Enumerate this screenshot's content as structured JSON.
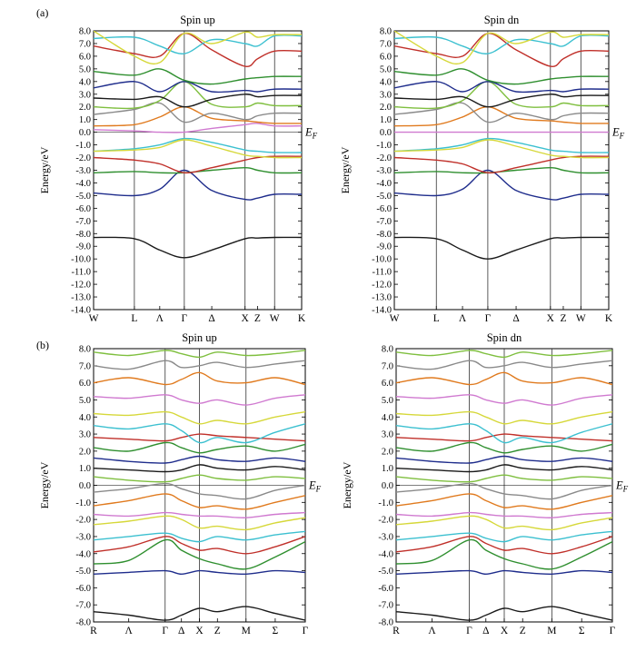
{
  "figure": {
    "part_labels": [
      "(a)",
      "(b)"
    ],
    "fermi_label": "E",
    "fermi_subscript": "F"
  },
  "band_colors": [
    "#1a1a1a",
    "#1f2d8c",
    "#2f8f2f",
    "#c0302a",
    "#3cc0d0",
    "#d6d83a",
    "#d07ad0",
    "#e07a1e",
    "#8a8a8a",
    "#7fbf3f"
  ],
  "chart_data": [
    {
      "type": "line",
      "panel": "a",
      "title": "Spin up",
      "ylabel": "Energy/eV",
      "ylim": [
        -14,
        8
      ],
      "yticks": [
        "8.0",
        "7.0",
        "6.0",
        "5.0",
        "4.0",
        "3.0",
        "2.0",
        "1.0",
        "0.0",
        "-1.0",
        "-2.0",
        "-3.0",
        "-4.0",
        "-5.0",
        "-6.0",
        "-7.0",
        "-8.0",
        "-9.0",
        "-10.0",
        "-11.0",
        "-12.0",
        "-13.0",
        "-14.0"
      ],
      "kpoints": [
        "W",
        "L",
        "Λ",
        "Γ",
        "Δ",
        "X",
        "Z",
        "W",
        "K"
      ],
      "kpos": [
        0,
        0.196,
        0.318,
        0.436,
        0.568,
        0.728,
        0.788,
        0.87,
        1
      ],
      "verticals": [
        1,
        3,
        5,
        7
      ],
      "series": [
        {
          "values": [
            -8.3,
            -8.4,
            -9.3,
            -9.9,
            -9.3,
            -8.4,
            -8.35,
            -8.3,
            -8.3
          ]
        },
        {
          "values": [
            -4.8,
            -5.0,
            -4.5,
            -3.0,
            -4.6,
            -5.3,
            -5.2,
            -4.9,
            -4.9
          ]
        },
        {
          "values": [
            -3.2,
            -3.1,
            -3.2,
            -3.2,
            -3.0,
            -2.8,
            -3.0,
            -3.2,
            -3.2
          ]
        },
        {
          "values": [
            -2.0,
            -2.2,
            -2.5,
            -3.2,
            -2.8,
            -2.2,
            -2.0,
            -1.9,
            -1.9
          ]
        },
        {
          "values": [
            -1.5,
            -1.3,
            -1.0,
            -0.5,
            -0.8,
            -1.4,
            -1.5,
            -1.6,
            -1.6
          ]
        },
        {
          "values": [
            -1.5,
            -1.4,
            -1.2,
            -0.6,
            -1.1,
            -1.8,
            -1.9,
            -2.0,
            -2.0
          ]
        },
        {
          "values": [
            0.2,
            0.1,
            0.0,
            0.0,
            0.3,
            0.6,
            0.7,
            0.5,
            0.5
          ]
        },
        {
          "values": [
            0.5,
            0.6,
            1.2,
            2.0,
            1.1,
            0.9,
            0.8,
            0.7,
            0.7
          ]
        },
        {
          "values": [
            1.4,
            1.8,
            2.3,
            0.8,
            1.5,
            1.0,
            1.3,
            1.5,
            1.5
          ]
        },
        {
          "values": [
            2.0,
            1.9,
            2.5,
            4.0,
            2.2,
            2.0,
            2.3,
            2.1,
            2.1
          ]
        },
        {
          "values": [
            2.7,
            2.6,
            2.8,
            2.0,
            2.6,
            3.0,
            2.8,
            2.9,
            2.9
          ]
        },
        {
          "values": [
            3.5,
            4.0,
            3.2,
            4.0,
            3.2,
            3.3,
            3.2,
            3.4,
            3.4
          ]
        },
        {
          "values": [
            4.8,
            4.5,
            5.0,
            4.1,
            3.8,
            4.2,
            4.3,
            4.4,
            4.4
          ]
        },
        {
          "values": [
            6.8,
            6.2,
            6.0,
            7.8,
            6.5,
            5.2,
            5.8,
            6.4,
            6.4
          ]
        },
        {
          "values": [
            7.4,
            7.5,
            6.8,
            6.2,
            7.3,
            7.0,
            6.8,
            7.6,
            7.6
          ]
        },
        {
          "values": [
            8.0,
            6.0,
            5.5,
            7.8,
            7.0,
            7.9,
            7.5,
            7.7,
            7.7
          ]
        }
      ]
    },
    {
      "type": "line",
      "panel": "a",
      "title": "Spin dn",
      "ylabel": "Energy/eV",
      "ylim": [
        -14,
        8
      ],
      "yticks": [
        "8.0",
        "7.0",
        "6.0",
        "5.0",
        "4.0",
        "3.0",
        "2.0",
        "1.0",
        "0.0",
        "-1.0",
        "-2.0",
        "-3.0",
        "-4.0",
        "-5.0",
        "-6.0",
        "-7.0",
        "-8.0",
        "-9.0",
        "-10.0",
        "-11.0",
        "-12.0",
        "-13.0",
        "-14.0"
      ],
      "kpoints": [
        "W",
        "L",
        "Λ",
        "Γ",
        "Δ",
        "X",
        "Z",
        "W",
        "K"
      ],
      "kpos": [
        0,
        0.196,
        0.318,
        0.436,
        0.568,
        0.728,
        0.788,
        0.87,
        1
      ],
      "verticals": [
        1,
        3,
        5,
        7
      ],
      "series": [
        {
          "values": [
            -8.3,
            -8.4,
            -9.3,
            -10.0,
            -9.3,
            -8.4,
            -8.35,
            -8.3,
            -8.3
          ]
        },
        {
          "values": [
            -4.8,
            -5.0,
            -4.5,
            -3.0,
            -4.6,
            -5.3,
            -5.2,
            -4.9,
            -4.9
          ]
        },
        {
          "values": [
            -3.2,
            -3.1,
            -3.2,
            -3.2,
            -3.0,
            -2.8,
            -3.0,
            -3.2,
            -3.2
          ]
        },
        {
          "values": [
            -2.0,
            -2.2,
            -2.5,
            -3.2,
            -2.8,
            -2.2,
            -2.0,
            -1.9,
            -1.9
          ]
        },
        {
          "values": [
            -1.5,
            -1.3,
            -1.0,
            -0.5,
            -0.8,
            -1.4,
            -1.5,
            -1.6,
            -1.6
          ]
        },
        {
          "values": [
            -1.5,
            -1.4,
            -1.2,
            -0.6,
            -1.1,
            -1.8,
            -1.9,
            -2.0,
            -2.0
          ]
        },
        {
          "values": [
            0.0,
            0.0,
            0.0,
            0.0,
            0.0,
            0.0,
            0.0,
            0.0,
            0.0
          ]
        },
        {
          "values": [
            0.5,
            0.6,
            1.2,
            2.0,
            1.1,
            0.9,
            0.8,
            0.7,
            0.7
          ]
        },
        {
          "values": [
            1.4,
            1.8,
            2.3,
            0.8,
            1.5,
            1.0,
            1.3,
            1.5,
            1.5
          ]
        },
        {
          "values": [
            2.0,
            1.9,
            2.5,
            4.0,
            2.2,
            2.0,
            2.3,
            2.1,
            2.1
          ]
        },
        {
          "values": [
            2.7,
            2.6,
            2.8,
            2.0,
            2.6,
            3.0,
            2.8,
            2.9,
            2.9
          ]
        },
        {
          "values": [
            3.5,
            4.0,
            3.2,
            4.0,
            3.2,
            3.3,
            3.2,
            3.4,
            3.4
          ]
        },
        {
          "values": [
            4.8,
            4.5,
            5.0,
            4.1,
            3.8,
            4.2,
            4.3,
            4.4,
            4.4
          ]
        },
        {
          "values": [
            6.8,
            6.2,
            6.0,
            7.8,
            6.5,
            5.2,
            5.8,
            6.4,
            6.4
          ]
        },
        {
          "values": [
            7.4,
            7.5,
            6.8,
            6.2,
            7.3,
            7.0,
            6.8,
            7.6,
            7.6
          ]
        },
        {
          "values": [
            8.0,
            6.0,
            5.5,
            7.8,
            7.0,
            7.9,
            7.5,
            7.7,
            7.7
          ]
        }
      ]
    },
    {
      "type": "line",
      "panel": "b",
      "title": "Spin up",
      "ylabel": "Energy/eV",
      "ylim": [
        -8,
        8
      ],
      "yticks": [
        "8.0",
        "7.0",
        "6.0",
        "5.0",
        "4.0",
        "3.0",
        "2.0",
        "1.0",
        "0.0",
        "-1.0",
        "-2.0",
        "-3.0",
        "-4.0",
        "-5.0",
        "-6.0",
        "-7.0",
        "-8.0"
      ],
      "kpoints": [
        "R",
        "Λ",
        "Γ",
        "Δ",
        "X",
        "Z",
        "M",
        "Σ",
        "Γ"
      ],
      "kpos": [
        0,
        0.166,
        0.338,
        0.415,
        0.5,
        0.585,
        0.72,
        0.858,
        1
      ],
      "verticals": [
        2,
        4,
        6
      ],
      "series": [
        {
          "values": [
            -7.4,
            -7.6,
            -7.9,
            -7.6,
            -7.2,
            -7.4,
            -7.1,
            -7.5,
            -7.9
          ]
        },
        {
          "values": [
            -5.2,
            -5.1,
            -5.0,
            -5.2,
            -5.0,
            -5.1,
            -5.2,
            -5.0,
            -5.1
          ]
        },
        {
          "values": [
            -4.6,
            -4.4,
            -3.2,
            -3.8,
            -4.3,
            -4.6,
            -4.9,
            -4.2,
            -3.3
          ]
        },
        {
          "values": [
            -3.9,
            -3.6,
            -3.0,
            -3.4,
            -3.8,
            -3.7,
            -4.0,
            -3.6,
            -3.0
          ]
        },
        {
          "values": [
            -3.2,
            -3.0,
            -2.8,
            -3.1,
            -3.3,
            -3.0,
            -3.2,
            -2.9,
            -2.7
          ]
        },
        {
          "values": [
            -2.3,
            -2.1,
            -1.8,
            -2.0,
            -2.5,
            -2.4,
            -2.6,
            -2.2,
            -1.9
          ]
        },
        {
          "values": [
            -1.7,
            -1.8,
            -1.6,
            -1.7,
            -1.8,
            -1.8,
            -1.9,
            -1.7,
            -1.6
          ]
        },
        {
          "values": [
            -1.2,
            -0.9,
            -0.5,
            -0.9,
            -1.3,
            -1.2,
            -1.4,
            -1.0,
            -0.6
          ]
        },
        {
          "values": [
            -0.4,
            -0.2,
            0.1,
            -0.2,
            -0.5,
            -0.6,
            -0.8,
            -0.3,
            0.0
          ]
        },
        {
          "values": [
            0.5,
            0.3,
            0.2,
            0.4,
            0.6,
            0.4,
            0.3,
            0.5,
            0.4
          ]
        },
        {
          "values": [
            1.0,
            0.9,
            0.8,
            0.9,
            1.2,
            1.0,
            0.9,
            1.1,
            0.9
          ]
        },
        {
          "values": [
            1.6,
            1.4,
            1.3,
            1.5,
            1.7,
            1.5,
            1.4,
            1.6,
            1.4
          ]
        },
        {
          "values": [
            2.2,
            2.0,
            2.5,
            2.2,
            1.9,
            2.1,
            2.3,
            2.0,
            2.4
          ]
        },
        {
          "values": [
            2.8,
            2.7,
            2.6,
            2.8,
            3.0,
            2.9,
            2.8,
            2.7,
            2.6
          ]
        },
        {
          "values": [
            3.5,
            3.3,
            3.6,
            3.2,
            2.5,
            2.8,
            2.5,
            3.1,
            3.6
          ]
        },
        {
          "values": [
            4.2,
            4.1,
            4.3,
            4.0,
            3.6,
            3.8,
            3.6,
            4.0,
            4.3
          ]
        },
        {
          "values": [
            5.2,
            5.1,
            5.3,
            5.0,
            4.8,
            5.0,
            4.7,
            5.1,
            5.3
          ]
        },
        {
          "values": [
            6.0,
            6.3,
            5.9,
            6.2,
            6.6,
            6.1,
            6.0,
            6.3,
            5.9
          ]
        },
        {
          "values": [
            7.0,
            6.8,
            7.3,
            6.9,
            7.0,
            7.2,
            6.9,
            7.1,
            7.3
          ]
        },
        {
          "values": [
            7.8,
            7.6,
            7.9,
            7.7,
            7.5,
            7.8,
            7.6,
            7.7,
            7.9
          ]
        }
      ]
    },
    {
      "type": "line",
      "panel": "b",
      "title": "Spin dn",
      "ylabel": "Energy/eV",
      "ylim": [
        -8,
        8
      ],
      "yticks": [
        "8.0",
        "7.0",
        "6.0",
        "5.0",
        "4.0",
        "3.0",
        "2.0",
        "1.0",
        "0.0",
        "-1.0",
        "-2.0",
        "-3.0",
        "-4.0",
        "-5.0",
        "-6.0",
        "-7.0",
        "-8.0"
      ],
      "kpoints": [
        "R",
        "Λ",
        "Γ",
        "Δ",
        "X",
        "Z",
        "M",
        "Σ",
        "Γ"
      ],
      "kpos": [
        0,
        0.166,
        0.338,
        0.415,
        0.5,
        0.585,
        0.72,
        0.858,
        1
      ],
      "verticals": [
        2,
        4,
        6
      ],
      "series": [
        {
          "values": [
            -7.4,
            -7.6,
            -7.9,
            -7.6,
            -7.2,
            -7.4,
            -7.1,
            -7.5,
            -7.9
          ]
        },
        {
          "values": [
            -5.2,
            -5.1,
            -5.0,
            -5.2,
            -5.0,
            -5.1,
            -5.2,
            -5.0,
            -5.1
          ]
        },
        {
          "values": [
            -4.6,
            -4.4,
            -3.2,
            -3.8,
            -4.3,
            -4.6,
            -4.9,
            -4.2,
            -3.3
          ]
        },
        {
          "values": [
            -3.9,
            -3.6,
            -3.0,
            -3.4,
            -3.8,
            -3.7,
            -4.0,
            -3.6,
            -3.0
          ]
        },
        {
          "values": [
            -3.2,
            -3.0,
            -2.8,
            -3.1,
            -3.3,
            -3.0,
            -3.2,
            -2.9,
            -2.7
          ]
        },
        {
          "values": [
            -2.3,
            -2.1,
            -1.8,
            -2.0,
            -2.5,
            -2.4,
            -2.6,
            -2.2,
            -1.9
          ]
        },
        {
          "values": [
            -1.7,
            -1.8,
            -1.6,
            -1.7,
            -1.8,
            -1.8,
            -1.9,
            -1.7,
            -1.6
          ]
        },
        {
          "values": [
            -1.2,
            -0.9,
            -0.5,
            -0.9,
            -1.3,
            -1.2,
            -1.4,
            -1.0,
            -0.6
          ]
        },
        {
          "values": [
            -0.4,
            -0.2,
            0.1,
            -0.2,
            -0.5,
            -0.6,
            -0.8,
            -0.3,
            0.0
          ]
        },
        {
          "values": [
            0.5,
            0.3,
            0.2,
            0.4,
            0.6,
            0.4,
            0.3,
            0.5,
            0.4
          ]
        },
        {
          "values": [
            1.0,
            0.9,
            0.8,
            0.9,
            1.2,
            1.0,
            0.9,
            1.1,
            0.9
          ]
        },
        {
          "values": [
            1.6,
            1.4,
            1.3,
            1.5,
            1.7,
            1.5,
            1.4,
            1.6,
            1.4
          ]
        },
        {
          "values": [
            2.2,
            2.0,
            2.5,
            2.2,
            1.9,
            2.1,
            2.3,
            2.0,
            2.4
          ]
        },
        {
          "values": [
            2.8,
            2.7,
            2.6,
            2.8,
            3.0,
            2.9,
            2.8,
            2.7,
            2.6
          ]
        },
        {
          "values": [
            3.5,
            3.3,
            3.6,
            3.2,
            2.5,
            2.8,
            2.5,
            3.1,
            3.6
          ]
        },
        {
          "values": [
            4.2,
            4.1,
            4.3,
            4.0,
            3.6,
            3.8,
            3.6,
            4.0,
            4.3
          ]
        },
        {
          "values": [
            5.2,
            5.1,
            5.3,
            5.0,
            4.8,
            5.0,
            4.7,
            5.1,
            5.3
          ]
        },
        {
          "values": [
            6.0,
            6.3,
            5.9,
            6.2,
            6.6,
            6.1,
            6.0,
            6.3,
            5.9
          ]
        },
        {
          "values": [
            7.0,
            6.8,
            7.3,
            6.9,
            7.0,
            7.2,
            6.9,
            7.1,
            7.3
          ]
        },
        {
          "values": [
            7.8,
            7.6,
            7.9,
            7.7,
            7.5,
            7.8,
            7.6,
            7.7,
            7.9
          ]
        }
      ]
    }
  ]
}
